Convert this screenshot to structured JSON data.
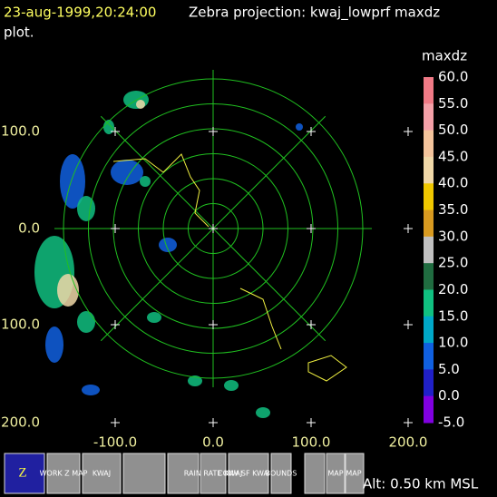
{
  "header": {
    "time": "23-aug-1999,20:24:00",
    "title": "Zebra projection: kwaj_lowprf maxdz",
    "title2": "plot."
  },
  "plot": {
    "y_labels": [
      "100.0",
      "0.0",
      "100.0",
      "200.0"
    ],
    "x_labels": [
      "-100.0",
      "0.0",
      "100.0",
      "200.0"
    ]
  },
  "colorbar": {
    "title": "maxdz",
    "labels": [
      "60.0",
      "55.0",
      "50.0",
      "45.0",
      "40.0",
      "35.0",
      "30.0",
      "25.0",
      "20.0",
      "15.0",
      "10.0",
      "5.0",
      "0.0",
      "-5.0"
    ],
    "colors": [
      "#f07a86",
      "#f4a0a8",
      "#f4c49c",
      "#f0d8a8",
      "#f0c800",
      "#d89a20",
      "#c0c0c0",
      "#206c40",
      "#10c080",
      "#00a8c8",
      "#1060e0",
      "#2020c8",
      "#8000e0"
    ]
  },
  "toolbar": {
    "icons": [
      "Z",
      "WORK Z MAP",
      "KWAJ",
      "RAIN RATE KWAJ",
      "CONV SF KWA",
      "BOUNDS",
      "MAP",
      "MAP"
    ],
    "altitude": "Alt: 0.50 km MSL"
  }
}
